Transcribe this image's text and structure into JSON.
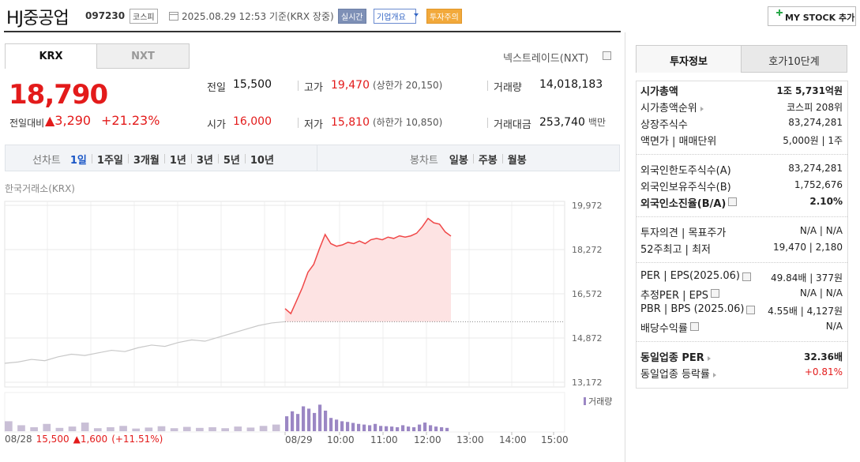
{
  "header": {
    "name": "HJ중공업",
    "code": "097230",
    "market": "코스피",
    "timestamp": "2025.08.29 12:53 기준(KRX 장중)",
    "badges": [
      "실시간",
      "기업개요",
      "투자주의"
    ],
    "button": "MY STOCK 추가"
  },
  "tabs": {
    "market": [
      "KRX",
      "NXT"
    ],
    "nxt_link": "넥스트레이드(NXT)"
  },
  "quote": {
    "price": "18,790",
    "change_label": "전일대비",
    "change": "▲3,290",
    "change_pct": "+21.23%"
  },
  "stats": [
    [
      {
        "label": "전일",
        "value": "15,500"
      },
      {
        "label": "고가",
        "value": "19,470",
        "note": "(상한가 20,150)",
        "tone": "up"
      },
      {
        "label": "거래량",
        "value": "14,018,183"
      }
    ],
    [
      {
        "label": "시가",
        "value": "16,000",
        "tone": "up"
      },
      {
        "label": "저가",
        "value": "15,810",
        "note": "(하한가 10,850)",
        "tone": "up"
      },
      {
        "label": "거래대금",
        "value": "253,740",
        "note": "백만"
      }
    ]
  ],
  "toolbar": {
    "line_label": "선차트",
    "periods": [
      "1일",
      "1주일",
      "3개월",
      "1년",
      "3년",
      "5년",
      "10년"
    ],
    "candle_label": "봉차트",
    "candles": [
      "일봉",
      "주봉",
      "월봉"
    ]
  },
  "chart_data": {
    "type": "line",
    "source": "한국거래소(KRX)",
    "ylim": [
      13172,
      19972
    ],
    "yticks": [
      {
        "value": 19972,
        "label": "19,972"
      },
      {
        "value": 18272,
        "label": "18,272"
      },
      {
        "value": 16572,
        "label": "16,572"
      },
      {
        "value": 14872,
        "label": "14,872"
      },
      {
        "value": 13172,
        "label": "13,172"
      }
    ],
    "x_labels": [
      "08/29",
      "10:00",
      "11:00",
      "12:00",
      "13:00",
      "14:00",
      "15:00"
    ],
    "reference": 15500,
    "series": [
      {
        "color": "#c8c8c8",
        "values": [
          13900,
          13950,
          14050,
          14000,
          14150,
          14250,
          14200,
          14300,
          14400,
          14350,
          14500,
          14600,
          14550,
          14700,
          14800,
          14750,
          14900,
          15050,
          15200,
          15350,
          15450,
          15500
        ]
      },
      {
        "color": "#f04848",
        "values": [
          16000,
          15810,
          16300,
          16800,
          17400,
          17700,
          18300,
          18850,
          18500,
          18400,
          18450,
          18550,
          18500,
          18600,
          18500,
          18650,
          18700,
          18650,
          18750,
          18700,
          18800,
          18750,
          18800,
          18900,
          19150,
          19470,
          19300,
          19250,
          18950,
          18790
        ]
      }
    ]
  },
  "volume": {
    "label": "거래량",
    "series": [
      {
        "color": "#c9bfd6",
        "values": [
          30,
          18,
          12,
          22,
          10,
          14,
          26,
          9,
          12,
          16,
          8,
          11,
          15,
          9,
          13,
          10,
          12,
          9,
          14,
          11,
          16,
          20
        ]
      },
      {
        "color": "#9b87c4",
        "values": [
          45,
          60,
          52,
          75,
          68,
          55,
          80,
          62,
          40,
          35,
          30,
          28,
          25,
          22,
          20,
          18,
          22,
          16,
          15,
          14,
          12,
          18,
          14,
          12,
          20,
          26,
          18,
          14,
          12,
          10
        ]
      }
    ]
  },
  "footer": {
    "date": "08/28",
    "close": "15,500",
    "change": "▲1,600",
    "change_pct": "(+11.51%)"
  },
  "side": {
    "tabs": [
      "투자정보",
      "호가10단계"
    ],
    "groups": [
      [
        {
          "label": "시가총액",
          "value": "1조 5,731억원",
          "bold": true
        },
        {
          "label": "시가총액순위",
          "value": "코스피 208위",
          "link": true
        },
        {
          "label": "상장주식수",
          "value": "83,274,281"
        },
        {
          "label": "액면가 | 매매단위",
          "value": "5,000원 | 1주"
        }
      ],
      [
        {
          "label": "외국인한도주식수(A)",
          "value": "83,274,281"
        },
        {
          "label": "외국인보유주식수(B)",
          "value": "1,752,676"
        },
        {
          "label": "외국인소진율(B/A)",
          "value": "2.10%",
          "bold": true,
          "help": true
        }
      ],
      [
        {
          "label": "투자의견 | 목표주가",
          "value": "N/A | N/A"
        },
        {
          "label": "52주최고 | 최저",
          "value": "19,470 | 2,180"
        }
      ],
      [
        {
          "label": "PER | EPS(2025.06)",
          "value": "49.84배 | 377원",
          "help": true
        },
        {
          "label": "추정PER | EPS",
          "value": "N/A | N/A",
          "help": true
        },
        {
          "label": "PBR | BPS (2025.06)",
          "value": "4.55배 | 4,127원",
          "help": true
        },
        {
          "label": "배당수익률",
          "value": "N/A",
          "help": true
        }
      ],
      [
        {
          "label": "동일업종 PER",
          "value": "32.36배",
          "bold": true,
          "link": true
        },
        {
          "label": "동일업종 등락률",
          "value": "+0.81%",
          "link": true,
          "tone": "up"
        }
      ]
    ]
  }
}
